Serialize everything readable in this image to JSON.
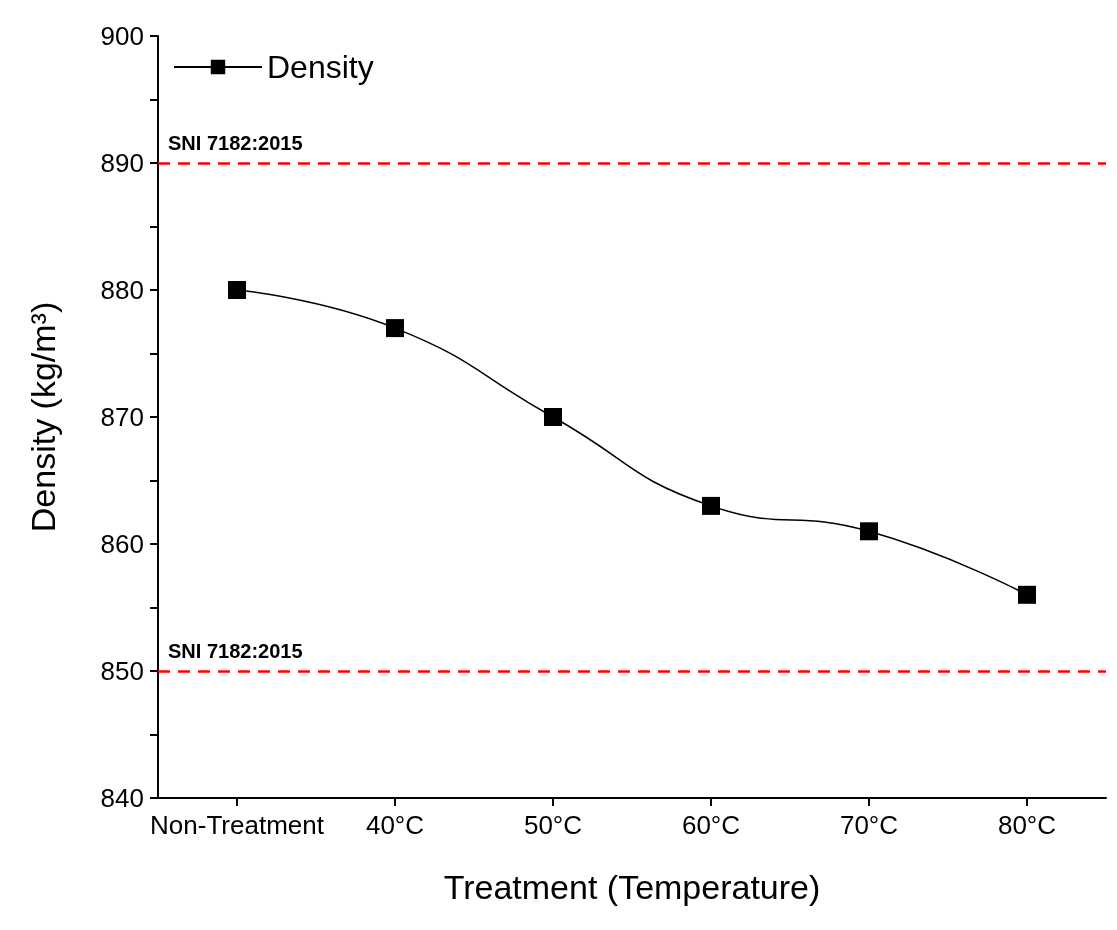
{
  "chart_data": {
    "type": "line",
    "xlabel": "Treatment (Temperature)",
    "ylabel": "Density (kg/m³)",
    "categories": [
      "Non-Treatment",
      "40°C",
      "50°C",
      "60°C",
      "70°C",
      "80°C"
    ],
    "series": [
      {
        "name": "Density",
        "color": "#000000",
        "values": [
          880,
          877,
          870,
          863,
          861,
          856
        ]
      }
    ],
    "ylim": [
      840,
      900
    ],
    "yticks": [
      840,
      850,
      860,
      870,
      880,
      890,
      900
    ],
    "ref_lines": [
      {
        "axis": "y",
        "value": 890,
        "color": "#ff0000",
        "line_style": "dashed"
      },
      {
        "axis": "y",
        "value": 850,
        "color": "#ff0000",
        "line_style": "dashed"
      }
    ],
    "annotations": [
      {
        "text": "SNI 7182:2015",
        "y": 890
      },
      {
        "text": "SNI 7182:2015",
        "y": 850
      }
    ],
    "marker": "square",
    "line_style": "solid",
    "legend": "top left",
    "grid": false
  }
}
